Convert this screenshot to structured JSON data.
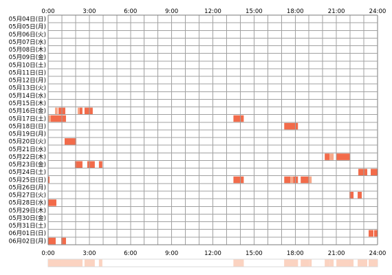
{
  "chart_data": {
    "type": "heatmap",
    "x_tick_labels": [
      "0:00",
      "3:00",
      "6:00",
      "9:00",
      "12:00",
      "15:00",
      "18:00",
      "21:00",
      "24:00"
    ],
    "x_range_hours": [
      0,
      24
    ],
    "days": [
      "05月04日(日)",
      "05月05日(月)",
      "05月06日(火)",
      "05月07日(水)",
      "05月08日(木)",
      "05月09日(金)",
      "05月10日(土)",
      "05月11日(日)",
      "05月12日(月)",
      "05月13日(火)",
      "05月14日(水)",
      "05月15日(木)",
      "05月16日(金)",
      "05月17日(土)",
      "05月18日(日)",
      "05月19日(月)",
      "05月20日(火)",
      "05月21日(水)",
      "05月22日(木)",
      "05月23日(金)",
      "05月24日(土)",
      "05月25日(日)",
      "05月26日(月)",
      "05月27日(火)",
      "05月28日(水)",
      "05月29日(木)",
      "05月30日(金)",
      "05月31日(土)",
      "06月01日(日)",
      "06月02日(月)"
    ],
    "grid": true,
    "colors": {
      "grid_line": "#a0a0a0",
      "grid_border": "#7a7a7a",
      "activity": "#f26b4a",
      "activity_light": "#f7a889",
      "activity_pale": "#fbd3c1",
      "summary_bg": "#ffffff",
      "summary_border": "#d8d8d8"
    },
    "activity": [
      {
        "day": 12,
        "start": 0.5,
        "end": 0.7,
        "level": "light"
      },
      {
        "day": 12,
        "start": 0.75,
        "end": 1.25,
        "level": "full"
      },
      {
        "day": 12,
        "start": 2.15,
        "end": 2.3,
        "level": "light"
      },
      {
        "day": 12,
        "start": 2.3,
        "end": 2.5,
        "level": "full"
      },
      {
        "day": 12,
        "start": 2.65,
        "end": 3.25,
        "level": "full"
      },
      {
        "day": 13,
        "start": 0.0,
        "end": 0.2,
        "level": "light"
      },
      {
        "day": 13,
        "start": 0.2,
        "end": 1.3,
        "level": "full"
      },
      {
        "day": 13,
        "start": 13.5,
        "end": 14.25,
        "level": "full"
      },
      {
        "day": 14,
        "start": 17.2,
        "end": 18.2,
        "level": "full"
      },
      {
        "day": 16,
        "start": 1.2,
        "end": 2.05,
        "level": "full"
      },
      {
        "day": 18,
        "start": 20.15,
        "end": 20.5,
        "level": "full"
      },
      {
        "day": 18,
        "start": 20.5,
        "end": 20.8,
        "level": "light"
      },
      {
        "day": 18,
        "start": 21.0,
        "end": 22.0,
        "level": "full"
      },
      {
        "day": 19,
        "start": 1.95,
        "end": 2.5,
        "level": "full"
      },
      {
        "day": 19,
        "start": 2.85,
        "end": 3.4,
        "level": "full"
      },
      {
        "day": 19,
        "start": 3.7,
        "end": 3.95,
        "level": "full"
      },
      {
        "day": 20,
        "start": 22.6,
        "end": 23.25,
        "level": "full"
      },
      {
        "day": 20,
        "start": 23.5,
        "end": 24.0,
        "level": "full"
      },
      {
        "day": 21,
        "start": 0.0,
        "end": 0.1,
        "level": "full"
      },
      {
        "day": 21,
        "start": 13.5,
        "end": 14.25,
        "level": "full"
      },
      {
        "day": 21,
        "start": 17.2,
        "end": 17.65,
        "level": "full"
      },
      {
        "day": 21,
        "start": 17.65,
        "end": 17.85,
        "level": "light"
      },
      {
        "day": 21,
        "start": 17.85,
        "end": 18.2,
        "level": "full"
      },
      {
        "day": 21,
        "start": 18.4,
        "end": 19.0,
        "level": "full"
      },
      {
        "day": 21,
        "start": 19.0,
        "end": 19.2,
        "level": "light"
      },
      {
        "day": 23,
        "start": 21.95,
        "end": 22.25,
        "level": "full"
      },
      {
        "day": 23,
        "start": 22.55,
        "end": 22.85,
        "level": "full"
      },
      {
        "day": 24,
        "start": 0.0,
        "end": 0.6,
        "level": "full"
      },
      {
        "day": 28,
        "start": 23.35,
        "end": 23.7,
        "level": "full"
      },
      {
        "day": 28,
        "start": 23.75,
        "end": 24.0,
        "level": "full"
      },
      {
        "day": 29,
        "start": 0.0,
        "end": 0.55,
        "level": "full"
      },
      {
        "day": 29,
        "start": 0.95,
        "end": 1.3,
        "level": "full"
      }
    ]
  }
}
